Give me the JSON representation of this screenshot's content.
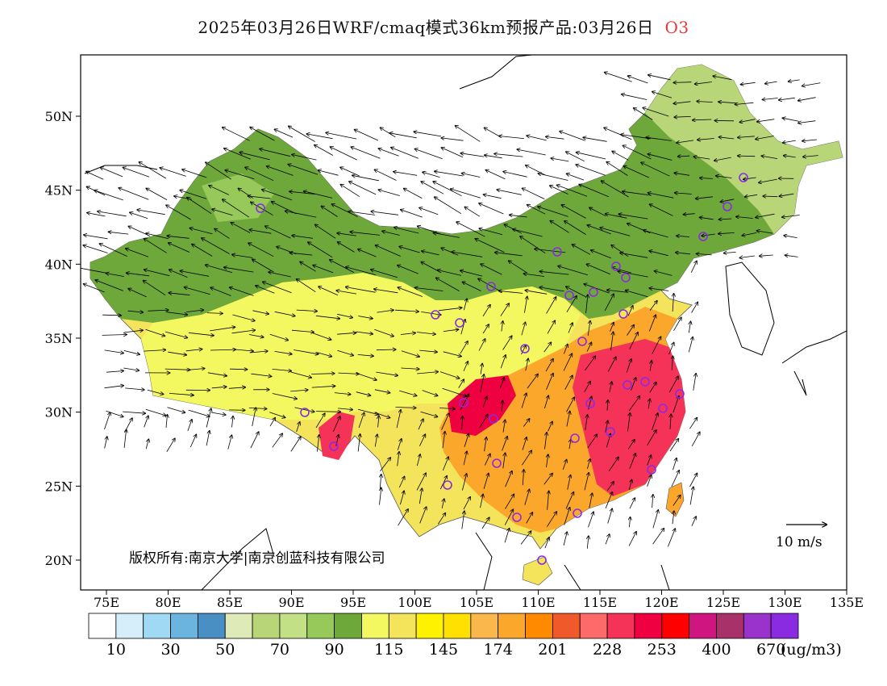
{
  "title": "2025年03月26日WRF/cmaq模式36km预报产品:03月26日",
  "species": "O3",
  "lat_labels": [
    "50N",
    "45N",
    "40N",
    "35N",
    "30N",
    "25N",
    "20N"
  ],
  "lon_labels": [
    "75E",
    "80E",
    "85E",
    "90E",
    "95E",
    "100E",
    "105E",
    "110E",
    "115E",
    "120E",
    "125E",
    "130E",
    "135E"
  ],
  "wind_reference_label": "10  m/s",
  "copyright": "版权所有:南京大学|南京创蓝科技有限公司",
  "colorbar": {
    "colors": [
      "#ffffff",
      "#d6eef9",
      "#9fd9f3",
      "#6cb4e0",
      "#4a8fc4",
      "#dfeab9",
      "#b8d678",
      "#c2e086",
      "#96c95a",
      "#6ea83a",
      "#f4f860",
      "#f4e45c",
      "#fff200",
      "#ffe000",
      "#f9b74c",
      "#fba72c",
      "#ff8a00",
      "#f05a2a",
      "#fd6a6a",
      "#f53358",
      "#ef0040",
      "#ff0000",
      "#cf1580",
      "#a8316a",
      "#9a33cc",
      "#8a2be2"
    ],
    "labels": [
      "10",
      "30",
      "50",
      "70",
      "90",
      "115",
      "145",
      "174",
      "201",
      "228",
      "253",
      "400",
      "670"
    ],
    "unit": "(ug/m3)"
  },
  "stations_count_note": "",
  "map_regions": [
    {
      "name": "north-green",
      "color": "#6ea83a"
    },
    {
      "name": "northeast-green",
      "color": "#96c95a"
    },
    {
      "name": "central-yellow",
      "color": "#f4e45c"
    },
    {
      "name": "south-orange",
      "color": "#f9b74c"
    },
    {
      "name": "east-red",
      "color": "#f53358"
    }
  ]
}
